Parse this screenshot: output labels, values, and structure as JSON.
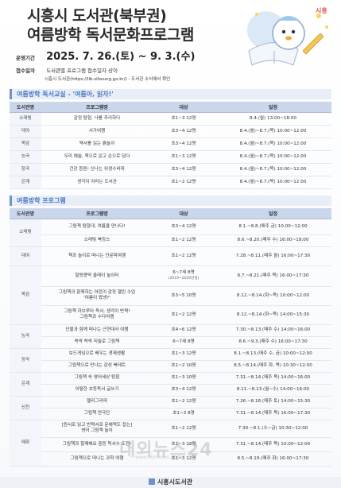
{
  "header": {
    "title_line1": "시흥시 도서관(북부권)",
    "title_line2": "여름방학 독서문화프로그램",
    "logo_text": "시흥"
  },
  "meta": {
    "period_label": "운영기간",
    "period_value": "2025. 7. 26.(토) ~ 9. 3.(수)",
    "apply_label": "접수일자",
    "apply_value1": "도서관별 프로그램 접수일자 상이",
    "apply_value2": "시흥시 도서관(https://lib.siheung.go.kr/) - 도서관 소식에서 확인"
  },
  "section1": {
    "title": "여름방학 독서교실 - '여름아, 읽자!'",
    "headers": [
      "도서관명",
      "프로그램명",
      "대상",
      "일정"
    ],
    "rows": [
      {
        "site": "소래빛",
        "program": "감정 탐험, 나를 추리하다",
        "target": "초1~3 12명",
        "schedule": "8.4.(월) 13:00~18:00"
      },
      {
        "site": "대야",
        "program": "서가여행",
        "target": "초3~4 12명",
        "schedule": "8.4.(월)~8.7.(목) 10:00~12:00"
      },
      {
        "site": "목감",
        "program": "역사를 읽는 흙놀이",
        "target": "초3~4 12명",
        "schedule": "8.4.(월)~8.7.(목) 10:00~12:00"
      },
      {
        "site": "능곡",
        "program": "우리 예술, 책으로 읽고 손으로 담다",
        "target": "초1~3 12명",
        "schedule": "8.4.(월)~8.7.(목) 10:00~12:00"
      },
      {
        "site": "장곡",
        "program": "건강 튼튼! 신나는 위생수비대",
        "target": "초3~4 12명",
        "schedule": "8.4.(월)~8.7.(목) 10:00~12:00"
      },
      {
        "site": "은계",
        "program": "생각이 자라는 도서관",
        "target": "초1~2 12명",
        "schedule": "8.4.(월)~8.7.(목) 10:00~12:00"
      }
    ]
  },
  "section2": {
    "title": "여름방학 프로그램",
    "headers": [
      "도서관명",
      "프로그램명",
      "대상",
      "일정"
    ],
    "sites": {
      "sorae": "소래빛",
      "daeya": "대야",
      "mokgam": "목감",
      "neunggok": "능곡",
      "janggok": "장곡",
      "eungye": "은계",
      "sincheon": "신천",
      "maehwa": "매화"
    },
    "rows": [
      {
        "program": "그림책 탐험대, 여름을 만나다!",
        "target": "초3~4 12명",
        "schedule": "8.1.~8.8.(매주 금) 10:00~12:00"
      },
      {
        "program": "소래빛 북캉스",
        "target": "초1~2 12명",
        "schedule": "8.6.~8.20.(매주 수) 16:00~18:00"
      },
      {
        "program": "책과 놀이로 떠나는 인문학여행",
        "target": "초1~2 12명",
        "schedule": "7.28.~8.11.(매주 월) 16:00~17:30"
      },
      {
        "program": "말랑콩떡 클레이 놀이터",
        "target": "6~7세 8명",
        "target_sub": "(2019~2020년생)",
        "schedule": "8.7.~8.21.(매주 목) 16:00~17:30"
      },
      {
        "program": "그림책과 함께하는 어린이 감정 챌린 수업",
        "program2": "'여름이 왔넹?'",
        "target": "초3~5 10명",
        "schedule": "8.12.~8.14.(화~목) 10:00~12:00"
      },
      {
        "program": "그림책 하브루타 독서, 생각이 반짝!",
        "program2": "그림책과 수다여행",
        "target": "초1~2 12명",
        "schedule": "8.12.~8.14.(화~목) 14:00~15:30"
      },
      {
        "program": "인물과 함께 떠나는 근현대사 여행",
        "target": "초4~6 12명",
        "schedule": "7.30.~8.13.(매주 수) 14:00~16:00"
      },
      {
        "program": "쓱싹 쓱싹 미술로 그림책",
        "target": "6~7세 8명",
        "schedule": "8.6.~9.3.(매주 수) 16:00~17:30"
      },
      {
        "program": "보드게임으로 배우는 경제생활",
        "target": "초1~3 12명",
        "schedule": "8.1.~8.13.(매주 수, 금) 10:00~12:00"
      },
      {
        "program": "그림책으로 만나는 감성 북테트",
        "target": "초1~2 10명",
        "schedule": "8.5.~8.14.(매주 화, 목) 10:30~12:00"
      },
      {
        "program": "그림책 속 영어세상 탐험",
        "target": "초1~3 10명",
        "schedule": "7.31.~8.14.(매주 목) 14:00~16:00"
      },
      {
        "program": "어떻한 초등독서 글쓰기",
        "target": "초3~4 12명",
        "schedule": "8.11.~8.13.(월~수) 14:00~16:00"
      },
      {
        "program": "헬리그라피",
        "target": "초1~2 12명",
        "schedule": "7.26.~8.16.(매주 토) 14:00~15:30"
      },
      {
        "program": "그림책 연극단",
        "target": "초1~3 8명",
        "schedule": "7.31.~8.14.(매주 목) 16:00~17:30"
      },
      {
        "program": "[원서로 읽고 반짝서로 문해력도 잡는]",
        "program2": "영어 그림책 놀이",
        "target": "초1~2 12명",
        "schedule": "7.30.~8.1.(수~금) 10:30~12:00"
      },
      {
        "program": "그림책과 함께해요 중등 독서수 도전!",
        "target": "초1~3 12명",
        "schedule": "7.31.~8.14.(매주 목) 10:00~12:00"
      },
      {
        "program": "그림책으로 떠나는 과학 여행",
        "target": "초1~3 12명",
        "schedule": "8.5.~8.19.(매주 화) 16:00~17:30"
      }
    ]
  },
  "footer": {
    "label": "시흥시도서관"
  },
  "watermark": {
    "main": "내외뉴스24",
    "sub": "www.nbnnews.co.kr"
  },
  "colors": {
    "accent": "#6f92c8",
    "section_text": "#4a78c2",
    "header_bg": "#c9d6ec"
  }
}
